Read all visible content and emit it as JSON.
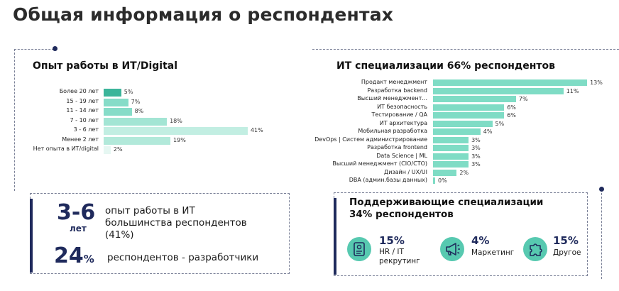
{
  "title": "Общая информация о респондентах",
  "experience": {
    "title": "Опыт работы в ИТ/Digital",
    "chart_data": {
      "type": "bar",
      "orientation": "horizontal",
      "categories": [
        "Более 20 лет",
        "15 - 19 лет",
        "11 - 14 лет",
        "7 - 10 лет",
        "3 - 6 лет",
        "Менее 2 лет",
        "Нет опыта в ИТ/digital"
      ],
      "values": [
        5,
        7,
        8,
        18,
        41,
        19,
        2
      ],
      "value_labels": [
        "5%",
        "7%",
        "8%",
        "18%",
        "41%",
        "19%",
        "2%"
      ],
      "unit": "%",
      "colors": [
        "#3bb59a",
        "#86dcc8",
        "#86dcc8",
        "#a3e5d4",
        "#c2eee2",
        "#b2e9da",
        "#e6f7f2"
      ]
    }
  },
  "specializations": {
    "title": "ИТ специализации 66% респондентов",
    "chart_data": {
      "type": "bar",
      "orientation": "horizontal",
      "categories": [
        "Продакт менеджмент",
        "Разработка backend",
        "Высший менеджмент...",
        "ИТ безопасность",
        "Тестирование / QA",
        "ИТ архитектура",
        "Мобильная разработка",
        "DevOps | Систем администрирование",
        "Разработка frontend",
        "Data Science | ML",
        "Высший менеджмент (CIO/CTO)",
        "Дизайн / UX/UI",
        "DBA (админ.базы данных)"
      ],
      "values": [
        13,
        11,
        7,
        6,
        6,
        5,
        4,
        3,
        3,
        3,
        3,
        2,
        0
      ],
      "value_labels": [
        "13%",
        "11%",
        "7%",
        "6%",
        "6%",
        "5%",
        "4%",
        "3%",
        "3%",
        "3%",
        "3%",
        "2%",
        "0%"
      ],
      "unit": "%",
      "color": "#7fdcc5"
    }
  },
  "highlights": {
    "years_num": "3-6",
    "years_unit": "лет",
    "years_text": "опыт работы в ИТ большинства респондентов (41%)",
    "devs_num": "24",
    "devs_pct": "%",
    "devs_text": "респондентов - разработчики"
  },
  "support": {
    "title": "Поддерживающие специализации 34% респондентов",
    "items": [
      {
        "pct": "15%",
        "label": "HR / IT рекрутинг",
        "icon": "id-card-icon"
      },
      {
        "pct": "4%",
        "label": "Маркетинг",
        "icon": "megaphone-icon"
      },
      {
        "pct": "15%",
        "label": "Другое",
        "icon": "puzzle-icon"
      }
    ]
  },
  "colors": {
    "navy": "#1f2a5c",
    "teal": "#57c9b0",
    "dash": "#7a8097"
  }
}
